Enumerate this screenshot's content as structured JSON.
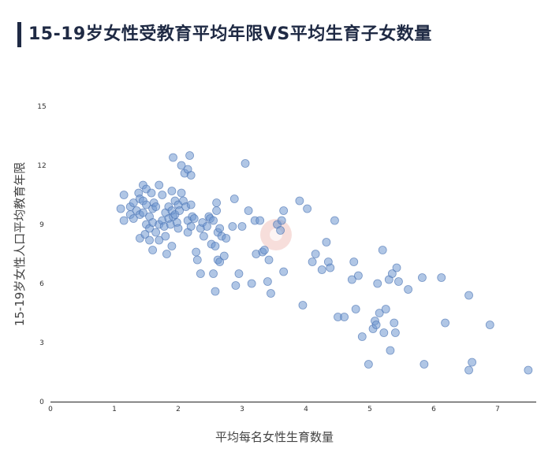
{
  "header": {
    "title": "15-19岁女性受教育平均年限VS平均生育子女数量"
  },
  "colors": {
    "accent": "#1f2a44",
    "point_fill": "#6f98d0",
    "point_stroke": "#4a74b3",
    "axis": "#222222"
  },
  "chart_data": {
    "type": "scatter",
    "xlabel": "平均每名女性生育数量",
    "ylabel": "15-19岁女性人口平均教育年限",
    "xlim": [
      0,
      8
    ],
    "ylim": [
      0,
      15
    ],
    "x_ticks": [
      "0",
      "1",
      "2",
      "3",
      "4",
      "5",
      "6",
      "7"
    ],
    "y_ticks": [
      "0",
      "3",
      "6",
      "9",
      "12",
      "15"
    ],
    "grid": false,
    "legend": "none",
    "points": [
      [
        1.1,
        9.8
      ],
      [
        1.15,
        10.5
      ],
      [
        1.15,
        9.2
      ],
      [
        1.25,
        9.5
      ],
      [
        1.25,
        9.9
      ],
      [
        1.3,
        9.3
      ],
      [
        1.3,
        10.1
      ],
      [
        1.35,
        9.7
      ],
      [
        1.38,
        10.6
      ],
      [
        1.4,
        10.3
      ],
      [
        1.4,
        9.5
      ],
      [
        1.4,
        8.3
      ],
      [
        1.45,
        11.0
      ],
      [
        1.45,
        10.2
      ],
      [
        1.45,
        9.6
      ],
      [
        1.48,
        8.5
      ],
      [
        1.5,
        10.8
      ],
      [
        1.5,
        10.0
      ],
      [
        1.5,
        9.0
      ],
      [
        1.55,
        9.4
      ],
      [
        1.55,
        8.8
      ],
      [
        1.55,
        8.2
      ],
      [
        1.58,
        10.6
      ],
      [
        1.6,
        9.8
      ],
      [
        1.6,
        9.1
      ],
      [
        1.6,
        7.7
      ],
      [
        1.62,
        10.1
      ],
      [
        1.65,
        9.9
      ],
      [
        1.65,
        8.6
      ],
      [
        1.7,
        11.0
      ],
      [
        1.7,
        9.0
      ],
      [
        1.7,
        8.2
      ],
      [
        1.75,
        10.5
      ],
      [
        1.75,
        9.2
      ],
      [
        1.78,
        8.9
      ],
      [
        1.8,
        9.6
      ],
      [
        1.8,
        8.4
      ],
      [
        1.82,
        7.5
      ],
      [
        1.85,
        9.9
      ],
      [
        1.85,
        9.3
      ],
      [
        1.88,
        9.0
      ],
      [
        1.9,
        10.7
      ],
      [
        1.9,
        9.7
      ],
      [
        1.9,
        7.9
      ],
      [
        1.92,
        12.4
      ],
      [
        1.92,
        9.4
      ],
      [
        1.95,
        10.2
      ],
      [
        1.95,
        9.5
      ],
      [
        1.98,
        9.1
      ],
      [
        2.0,
        10.0
      ],
      [
        2.0,
        8.8
      ],
      [
        2.02,
        9.7
      ],
      [
        2.05,
        12.0
      ],
      [
        2.05,
        10.6
      ],
      [
        2.08,
        10.2
      ],
      [
        2.1,
        11.6
      ],
      [
        2.12,
        9.9
      ],
      [
        2.15,
        11.8
      ],
      [
        2.15,
        9.2
      ],
      [
        2.15,
        8.6
      ],
      [
        2.18,
        12.5
      ],
      [
        2.2,
        11.5
      ],
      [
        2.2,
        10.0
      ],
      [
        2.2,
        8.9
      ],
      [
        2.22,
        9.4
      ],
      [
        2.25,
        9.3
      ],
      [
        2.28,
        7.6
      ],
      [
        2.3,
        7.2
      ],
      [
        2.35,
        8.8
      ],
      [
        2.35,
        6.5
      ],
      [
        2.38,
        9.1
      ],
      [
        2.4,
        8.4
      ],
      [
        2.45,
        8.9
      ],
      [
        2.48,
        9.4
      ],
      [
        2.5,
        9.3
      ],
      [
        2.52,
        8.0
      ],
      [
        2.55,
        9.2
      ],
      [
        2.55,
        6.5
      ],
      [
        2.58,
        5.6
      ],
      [
        2.58,
        7.9
      ],
      [
        2.6,
        9.7
      ],
      [
        2.6,
        10.1
      ],
      [
        2.62,
        8.6
      ],
      [
        2.62,
        7.2
      ],
      [
        2.65,
        8.8
      ],
      [
        2.65,
        7.1
      ],
      [
        2.68,
        8.4
      ],
      [
        2.72,
        7.4
      ],
      [
        2.75,
        8.3
      ],
      [
        2.85,
        8.9
      ],
      [
        2.88,
        10.3
      ],
      [
        2.9,
        5.9
      ],
      [
        2.95,
        6.5
      ],
      [
        3.0,
        8.9
      ],
      [
        3.05,
        12.1
      ],
      [
        3.1,
        9.7
      ],
      [
        3.15,
        6.0
      ],
      [
        3.2,
        9.2
      ],
      [
        3.22,
        7.5
      ],
      [
        3.28,
        9.2
      ],
      [
        3.32,
        7.6
      ],
      [
        3.35,
        7.7
      ],
      [
        3.4,
        6.1
      ],
      [
        3.42,
        7.2
      ],
      [
        3.45,
        5.5
      ],
      [
        3.55,
        9.0
      ],
      [
        3.6,
        8.7
      ],
      [
        3.62,
        9.2
      ],
      [
        3.65,
        9.7
      ],
      [
        3.65,
        6.6
      ],
      [
        3.9,
        10.2
      ],
      [
        3.95,
        4.9
      ],
      [
        4.02,
        9.8
      ],
      [
        4.1,
        7.1
      ],
      [
        4.15,
        7.5
      ],
      [
        4.25,
        6.7
      ],
      [
        4.32,
        8.1
      ],
      [
        4.35,
        7.1
      ],
      [
        4.38,
        6.8
      ],
      [
        4.45,
        9.2
      ],
      [
        4.5,
        4.3
      ],
      [
        4.6,
        4.3
      ],
      [
        4.72,
        6.2
      ],
      [
        4.75,
        7.1
      ],
      [
        4.78,
        4.7
      ],
      [
        4.82,
        6.4
      ],
      [
        4.88,
        3.3
      ],
      [
        4.98,
        1.9
      ],
      [
        5.05,
        3.7
      ],
      [
        5.08,
        4.1
      ],
      [
        5.1,
        3.9
      ],
      [
        5.12,
        6.0
      ],
      [
        5.15,
        4.5
      ],
      [
        5.2,
        7.7
      ],
      [
        5.22,
        3.5
      ],
      [
        5.25,
        4.7
      ],
      [
        5.3,
        6.2
      ],
      [
        5.32,
        2.6
      ],
      [
        5.35,
        6.5
      ],
      [
        5.38,
        4.0
      ],
      [
        5.4,
        3.5
      ],
      [
        5.42,
        6.8
      ],
      [
        5.45,
        6.1
      ],
      [
        5.6,
        5.7
      ],
      [
        5.82,
        6.3
      ],
      [
        5.85,
        1.9
      ],
      [
        6.12,
        6.3
      ],
      [
        6.18,
        4.0
      ],
      [
        6.55,
        5.4
      ],
      [
        6.55,
        1.6
      ],
      [
        6.6,
        2.0
      ],
      [
        6.88,
        3.9
      ],
      [
        7.48,
        1.6
      ]
    ]
  }
}
